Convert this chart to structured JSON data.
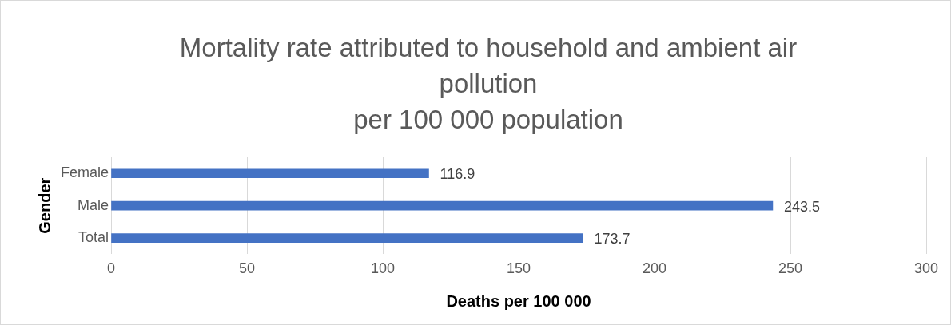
{
  "chart_data": {
    "type": "bar",
    "orientation": "horizontal",
    "title": "Mortality rate attributed to household and ambient air pollution",
    "subtitle": "per 100 000 population",
    "xlabel": "Deaths per 100 000",
    "ylabel": "Gender",
    "categories": [
      "Female",
      "Male",
      "Total"
    ],
    "values": [
      116.9,
      243.5,
      173.7
    ],
    "color": "#4472c4",
    "xlim": [
      0,
      300
    ],
    "xticks": [
      0,
      50,
      100,
      150,
      200,
      250,
      300
    ],
    "grid": "x",
    "legend": false,
    "data_labels": true
  }
}
